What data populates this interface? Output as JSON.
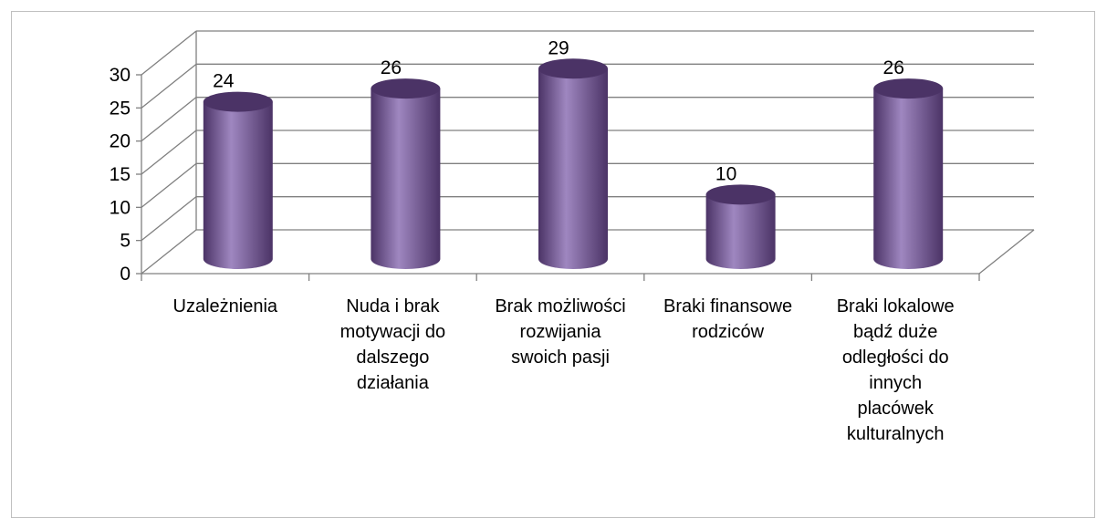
{
  "chart_data": {
    "type": "bar",
    "style": "3d-cylinder",
    "title": "",
    "xlabel": "",
    "ylabel": "",
    "categories": [
      [
        "Uzależnienia"
      ],
      [
        "Nuda i brak",
        "motywacji do",
        "dalszego",
        "działania"
      ],
      [
        "Brak możliwości",
        "rozwijania",
        "swoich pasji"
      ],
      [
        "Braki finansowe",
        "rodziców"
      ],
      [
        "Braki lokalowe",
        "bądź duże",
        "odległości do",
        "innych",
        "placówek",
        "kulturalnych"
      ]
    ],
    "series": [
      {
        "values": [
          24,
          26,
          29,
          10,
          26
        ],
        "data_labels": [
          "24",
          "26",
          "29",
          "10",
          "26"
        ]
      }
    ],
    "ylim": [
      0,
      30
    ],
    "yticks": [
      "0",
      "5",
      "10",
      "15",
      "20",
      "25",
      "30"
    ],
    "grid": true,
    "legend": "none",
    "colors": {
      "bar": "#8064a2",
      "bar_dark": "#4b3366",
      "bar_light": "#9f87c0",
      "gridline": "#808080",
      "frame": "#bfbfbf"
    }
  }
}
